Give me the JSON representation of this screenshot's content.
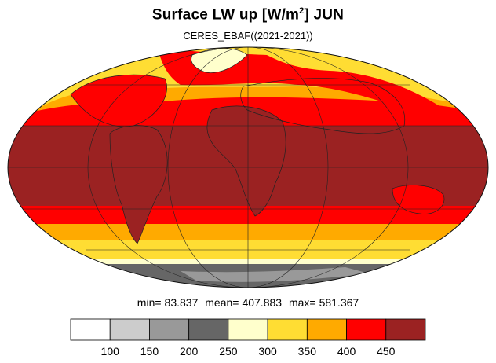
{
  "title": {
    "main": "Surface LW up [W/m",
    "sup": "2",
    "tail": "]  JUN"
  },
  "subtitle": "CERES_EBAF((2021-2021))",
  "stats": {
    "min_label": "min=",
    "min": "83.837",
    "mean_label": "mean=",
    "mean": "407.883",
    "max_label": "max=",
    "max": "581.367"
  },
  "colorbar": {
    "colors": [
      "#ffffff",
      "#cccccc",
      "#999999",
      "#666666",
      "#ffffcc",
      "#ffdd33",
      "#ffaa00",
      "#ff0000",
      "#9b2222"
    ],
    "labels": [
      "100",
      "150",
      "200",
      "250",
      "300",
      "350",
      "400",
      "450"
    ]
  },
  "map": {
    "projection": "Mollweide",
    "zones": [
      {
        "color": "#ffdd33"
      },
      {
        "color": "#ffaa00"
      },
      {
        "color": "#ff0000"
      },
      {
        "color": "#9b2222"
      },
      {
        "color": "#ffffcc"
      },
      {
        "color": "#666666"
      },
      {
        "color": "#999999"
      }
    ]
  }
}
